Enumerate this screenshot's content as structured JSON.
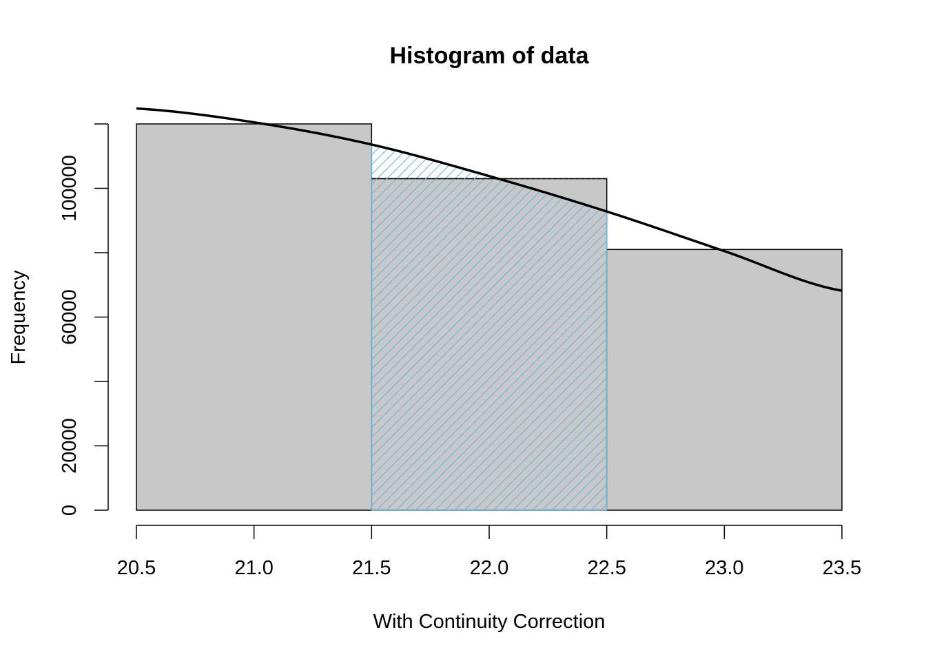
{
  "chart_data": {
    "type": "bar",
    "title": "Histogram of data",
    "xlabel": "With Continuity Correction",
    "ylabel": "Frequency",
    "xlim": [
      20.5,
      23.5
    ],
    "ylim": [
      0,
      120000
    ],
    "bins": [
      {
        "x0": 20.5,
        "x1": 21.5,
        "value": 120000
      },
      {
        "x0": 21.5,
        "x1": 22.5,
        "value": 103000
      },
      {
        "x0": 22.5,
        "x1": 23.5,
        "value": 81000
      }
    ],
    "x_ticks": [
      20.5,
      21.0,
      21.5,
      22.0,
      22.5,
      23.0,
      23.5
    ],
    "x_tick_labels": [
      "20.5",
      "21.0",
      "21.5",
      "22.0",
      "22.5",
      "23.0",
      "23.5"
    ],
    "y_ticks": [
      0,
      20000,
      40000,
      60000,
      80000,
      100000,
      120000
    ],
    "y_tick_labels": [
      "0",
      "20000",
      "",
      "60000",
      "",
      "100000",
      ""
    ],
    "curve": {
      "type": "normal-density-line",
      "points": [
        {
          "x": 20.5,
          "y": 124800
        },
        {
          "x": 21.0,
          "y": 120500
        },
        {
          "x": 21.5,
          "y": 113600
        },
        {
          "x": 22.0,
          "y": 103800
        },
        {
          "x": 22.5,
          "y": 92800
        },
        {
          "x": 23.0,
          "y": 80500
        },
        {
          "x": 23.5,
          "y": 68200
        }
      ]
    },
    "shaded_region": {
      "x0": 21.5,
      "x1": 22.5,
      "color": "#6bb8e0"
    },
    "colors": {
      "bar_fill": "#c8c8c8",
      "bar_stroke": "#000000",
      "curve": "#000000",
      "shade": "#6bb8e0"
    },
    "grid": false
  }
}
